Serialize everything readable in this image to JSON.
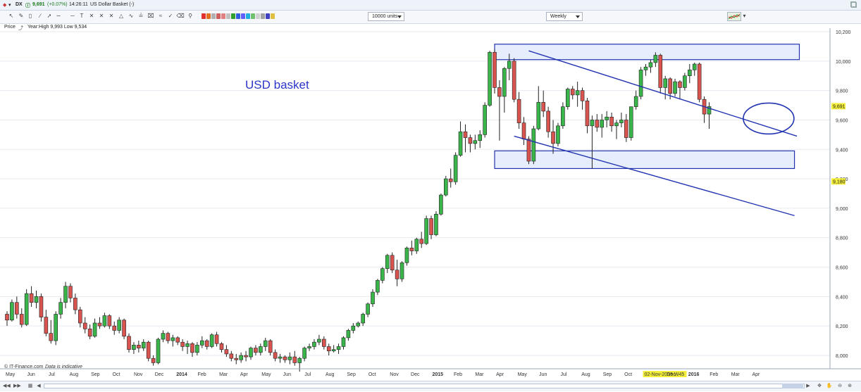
{
  "header": {
    "symbol": "DX",
    "price": "9,691",
    "change": "(+0.07%)",
    "time": "14:26:11",
    "instrument": "US Dollar Basket (-)"
  },
  "toolbar": {
    "units_select": "10000 units",
    "period_select": "Weekly",
    "icons": [
      "pointer-icon",
      "pencil-icon",
      "eraser-icon",
      "trendline-icon",
      "line-icon",
      "text-icon",
      "fib-icon",
      "fib-fan-icon",
      "fib-arc-icon",
      "pitchfork-icon",
      "cycles-icon",
      "channel-icon",
      "trash-icon",
      "zoom-icon"
    ],
    "swatches": [
      "#e03030",
      "#e07020",
      "#b0b0b0",
      "#d06060",
      "#e08080",
      "#c0c0c0",
      "#30a030",
      "#3060e0",
      "#6060ff",
      "#20b0e0",
      "#70c070",
      "#d0d0d0",
      "#a0a0a0",
      "#4040c0",
      "#e0c040"
    ]
  },
  "info": {
    "label": "Price",
    "summary": "Year:High 9,993 Low 9,534"
  },
  "credit": {
    "source": "© IT-Finance.com",
    "note": "Data is indicative"
  },
  "chart_data": {
    "type": "candlestick",
    "annotation": "USD basket",
    "y_ticks": [
      "10,200",
      "10,000",
      "9,800",
      "9,600",
      "9,400",
      "9,200",
      "9,000",
      "8,800",
      "8,600",
      "8,400",
      "8,200",
      "8,000"
    ],
    "y_tick_values": [
      10200,
      10000,
      9800,
      9600,
      9400,
      9200,
      9000,
      8800,
      8600,
      8400,
      8200,
      8000
    ],
    "ylim": [
      7840,
      10230
    ],
    "last_price_label": "9,691",
    "last_price": 9691,
    "marker_label": "9,180",
    "marker_value": 9180,
    "x_labels": [
      "May",
      "Jun",
      "Jul",
      "Aug",
      "Sep",
      "Oct",
      "Nov",
      "Dec",
      "2014",
      "Feb",
      "Mar",
      "Apr",
      "May",
      "Jun",
      "Jul",
      "Aug",
      "Sep",
      "Oct",
      "Nov",
      "Dec",
      "2015",
      "Feb",
      "Mar",
      "Apr",
      "May",
      "Jun",
      "Jul",
      "Aug",
      "Sep",
      "Oct",
      "02-Nov-2015 W45",
      "Dec",
      "2016",
      "Feb",
      "Mar",
      "Apr"
    ],
    "x_label_weeks": [
      0,
      4.4,
      8.8,
      13.1,
      17.5,
      21.9,
      26.3,
      30.6,
      35,
      39.4,
      43.8,
      48.1,
      52.5,
      56.9,
      61.3,
      65.6,
      70,
      74.4,
      78.8,
      83.1,
      87.5,
      91.9,
      96.3,
      100.6,
      105,
      109.4,
      113.8,
      118.1,
      122.5,
      126.9,
      131,
      135.6,
      140,
      144.4,
      148.8,
      153.1
    ],
    "candles": [
      [
        8280,
        8300,
        8200,
        8240
      ],
      [
        8240,
        8380,
        8230,
        8360
      ],
      [
        8360,
        8400,
        8250,
        8280
      ],
      [
        8280,
        8320,
        8190,
        8210
      ],
      [
        8210,
        8450,
        8200,
        8420
      ],
      [
        8420,
        8470,
        8330,
        8360
      ],
      [
        8360,
        8440,
        8320,
        8400
      ],
      [
        8400,
        8420,
        8230,
        8260
      ],
      [
        8260,
        8310,
        8130,
        8150
      ],
      [
        8150,
        8240,
        8080,
        8100
      ],
      [
        8100,
        8300,
        8070,
        8280
      ],
      [
        8280,
        8390,
        8250,
        8360
      ],
      [
        8360,
        8500,
        8320,
        8470
      ],
      [
        8470,
        8490,
        8360,
        8390
      ],
      [
        8390,
        8420,
        8280,
        8310
      ],
      [
        8310,
        8330,
        8190,
        8220
      ],
      [
        8220,
        8260,
        8150,
        8180
      ],
      [
        8180,
        8210,
        8110,
        8130
      ],
      [
        8130,
        8250,
        8120,
        8220
      ],
      [
        8220,
        8260,
        8180,
        8200
      ],
      [
        8200,
        8290,
        8190,
        8270
      ],
      [
        8270,
        8280,
        8180,
        8200
      ],
      [
        8200,
        8230,
        8140,
        8170
      ],
      [
        8170,
        8260,
        8150,
        8240
      ],
      [
        8240,
        8250,
        8110,
        8130
      ],
      [
        8130,
        8150,
        8020,
        8040
      ],
      [
        8040,
        8090,
        8010,
        8070
      ],
      [
        8070,
        8100,
        8020,
        8050
      ],
      [
        8050,
        8110,
        8030,
        8090
      ],
      [
        8090,
        8100,
        7960,
        7980
      ],
      [
        7980,
        8000,
        7930,
        7950
      ],
      [
        7950,
        8120,
        7940,
        8110
      ],
      [
        8110,
        8170,
        8090,
        8150
      ],
      [
        8150,
        8160,
        8080,
        8100
      ],
      [
        8100,
        8140,
        8060,
        8120
      ],
      [
        8120,
        8130,
        8070,
        8090
      ],
      [
        8090,
        8110,
        8030,
        8060
      ],
      [
        8060,
        8100,
        8010,
        8080
      ],
      [
        8080,
        8090,
        7990,
        8020
      ],
      [
        8020,
        8090,
        8000,
        8070
      ],
      [
        8070,
        8130,
        8050,
        8100
      ],
      [
        8100,
        8110,
        8040,
        8060
      ],
      [
        8060,
        8150,
        8050,
        8140
      ],
      [
        8140,
        8160,
        8060,
        8080
      ],
      [
        8080,
        8090,
        8020,
        8040
      ],
      [
        8040,
        8070,
        7990,
        8010
      ],
      [
        8010,
        8030,
        7960,
        7980
      ],
      [
        7980,
        8010,
        7940,
        7970
      ],
      [
        7970,
        8020,
        7950,
        8000
      ],
      [
        8000,
        8030,
        7960,
        7990
      ],
      [
        7990,
        8060,
        7970,
        8050
      ],
      [
        8050,
        8070,
        8000,
        8020
      ],
      [
        8020,
        8080,
        8000,
        8060
      ],
      [
        8060,
        8120,
        8030,
        8100
      ],
      [
        8100,
        8110,
        8000,
        8020
      ],
      [
        8020,
        8040,
        7960,
        7980
      ],
      [
        7980,
        8010,
        7950,
        7990
      ],
      [
        7990,
        8000,
        7950,
        7970
      ],
      [
        7970,
        8020,
        7940,
        7990
      ],
      [
        7990,
        8030,
        7930,
        7950
      ],
      [
        7950,
        7990,
        7890,
        7980
      ],
      [
        7980,
        8060,
        7960,
        8050
      ],
      [
        8050,
        8080,
        8030,
        8060
      ],
      [
        8060,
        8110,
        8040,
        8090
      ],
      [
        8090,
        8140,
        8070,
        8110
      ],
      [
        8110,
        8130,
        8040,
        8060
      ],
      [
        8060,
        8080,
        8000,
        8030
      ],
      [
        8030,
        8070,
        8020,
        8040
      ],
      [
        8040,
        8080,
        8010,
        8060
      ],
      [
        8060,
        8130,
        8040,
        8120
      ],
      [
        8120,
        8180,
        8100,
        8170
      ],
      [
        8170,
        8220,
        8150,
        8200
      ],
      [
        8200,
        8230,
        8190,
        8220
      ],
      [
        8220,
        8290,
        8200,
        8280
      ],
      [
        8280,
        8360,
        8260,
        8350
      ],
      [
        8350,
        8450,
        8330,
        8430
      ],
      [
        8430,
        8520,
        8410,
        8510
      ],
      [
        8510,
        8600,
        8490,
        8590
      ],
      [
        8590,
        8690,
        8560,
        8680
      ],
      [
        8680,
        8700,
        8560,
        8580
      ],
      [
        8580,
        8650,
        8470,
        8520
      ],
      [
        8520,
        8640,
        8500,
        8630
      ],
      [
        8630,
        8740,
        8610,
        8730
      ],
      [
        8730,
        8780,
        8680,
        8710
      ],
      [
        8710,
        8800,
        8690,
        8790
      ],
      [
        8790,
        8840,
        8730,
        8760
      ],
      [
        8760,
        8950,
        8750,
        8930
      ],
      [
        8930,
        8950,
        8790,
        8820
      ],
      [
        8820,
        8980,
        8810,
        8960
      ],
      [
        8960,
        9100,
        8950,
        9090
      ],
      [
        9090,
        9220,
        9080,
        9200
      ],
      [
        9200,
        9270,
        9140,
        9180
      ],
      [
        9180,
        9380,
        9160,
        9360
      ],
      [
        9360,
        9590,
        9350,
        9520
      ],
      [
        9520,
        9570,
        9380,
        9480
      ],
      [
        9480,
        9500,
        9380,
        9440
      ],
      [
        9440,
        9500,
        9400,
        9460
      ],
      [
        9460,
        9530,
        9410,
        9500
      ],
      [
        9500,
        9720,
        9480,
        9700
      ],
      [
        9700,
        10070,
        9690,
        10060
      ],
      [
        10060,
        10080,
        9780,
        9820
      ],
      [
        9820,
        9870,
        9460,
        9760
      ],
      [
        9760,
        9960,
        9650,
        9950
      ],
      [
        9950,
        10050,
        9870,
        10000
      ],
      [
        10000,
        10020,
        9720,
        9740
      ],
      [
        9740,
        9790,
        9540,
        9580
      ],
      [
        9580,
        9620,
        9430,
        9470
      ],
      [
        9470,
        9490,
        9300,
        9320
      ],
      [
        9320,
        9560,
        9300,
        9540
      ],
      [
        9540,
        9830,
        9530,
        9720
      ],
      [
        9720,
        9800,
        9620,
        9660
      ],
      [
        9660,
        9690,
        9480,
        9520
      ],
      [
        9520,
        9600,
        9370,
        9440
      ],
      [
        9440,
        9580,
        9420,
        9560
      ],
      [
        9560,
        9720,
        9540,
        9690
      ],
      [
        9690,
        9820,
        9670,
        9810
      ],
      [
        9810,
        9830,
        9740,
        9770
      ],
      [
        9770,
        9860,
        9690,
        9800
      ],
      [
        9800,
        9820,
        9670,
        9730
      ],
      [
        9730,
        9750,
        9510,
        9560
      ],
      [
        9560,
        9630,
        9270,
        9600
      ],
      [
        9600,
        9640,
        9520,
        9550
      ],
      [
        9550,
        9640,
        9480,
        9600
      ],
      [
        9600,
        9660,
        9550,
        9620
      ],
      [
        9620,
        9650,
        9520,
        9560
      ],
      [
        9560,
        9600,
        9470,
        9580
      ],
      [
        9580,
        9650,
        9550,
        9600
      ],
      [
        9600,
        9640,
        9450,
        9480
      ],
      [
        9480,
        9690,
        9460,
        9690
      ],
      [
        9690,
        9800,
        9670,
        9760
      ],
      [
        9760,
        9960,
        9740,
        9940
      ],
      [
        9940,
        9980,
        9900,
        9960
      ],
      [
        9960,
        10010,
        9920,
        9990
      ],
      [
        9990,
        10060,
        9960,
        10040
      ],
      [
        10040,
        10050,
        9780,
        9820
      ],
      [
        9820,
        9900,
        9740,
        9880
      ],
      [
        9880,
        9890,
        9740,
        9780
      ],
      [
        9780,
        9880,
        9760,
        9860
      ],
      [
        9860,
        9870,
        9740,
        9820
      ],
      [
        9820,
        9920,
        9800,
        9900
      ],
      [
        9900,
        9980,
        9850,
        9940
      ],
      [
        9940,
        9990,
        9900,
        9980
      ],
      [
        9980,
        9990,
        9720,
        9740
      ],
      [
        9740,
        9760,
        9580,
        9640
      ],
      [
        9640,
        9720,
        9540,
        9691
      ]
    ],
    "shapes": {
      "top_band": {
        "w1": 100,
        "w2": 162.5,
        "v1": 10115,
        "v2": 10010
      },
      "mid_band": {
        "w1": 100,
        "w2": 161.5,
        "v1": 9390,
        "v2": 9270
      },
      "channel_upper": {
        "w1": 107,
        "w2": 162,
        "v1": 10070,
        "v2": 9490
      },
      "channel_lower": {
        "w1": 104,
        "w2": 161.5,
        "v1": 9490,
        "v2": 8950
      },
      "ellipse": {
        "cx": 156.2,
        "cy": 9610,
        "rw": 5.2,
        "rv": 105
      }
    }
  },
  "scrollbar": {}
}
